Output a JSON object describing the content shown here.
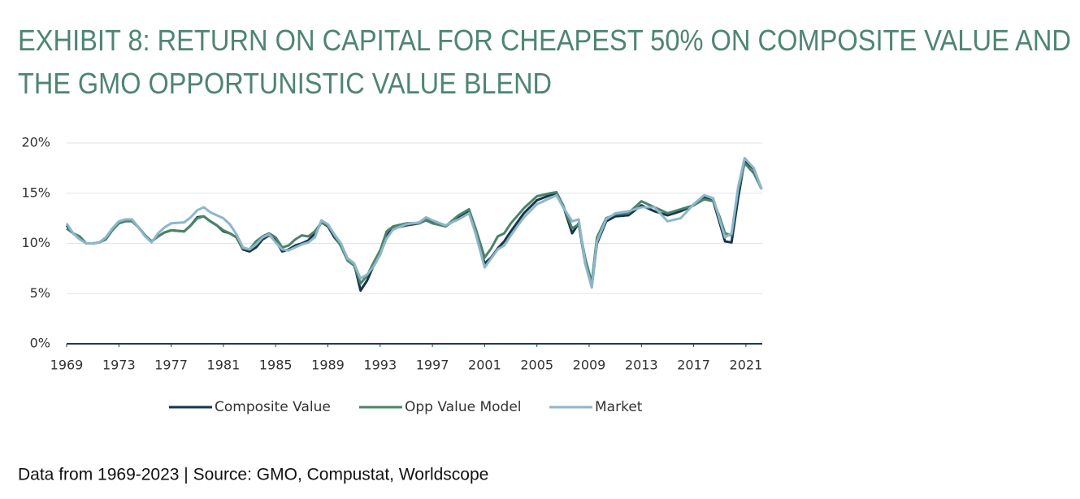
{
  "chart_data": {
    "type": "line",
    "title_lines": [
      "EXHIBIT 8: RETURN ON CAPITAL FOR CHEAPEST 50% ON COMPOSITE VALUE AND",
      "THE GMO OPPORTUNISTIC VALUE BLEND"
    ],
    "source": "Data from 1969-2023 | Source: GMO, Compustat, Worldscope",
    "x": [
      1969,
      1969.5,
      1970,
      1970.5,
      1971,
      1971.5,
      1972,
      1972.5,
      1973,
      1973.5,
      1974,
      1974.5,
      1975,
      1975.5,
      1976,
      1976.5,
      1977,
      1978,
      1978.5,
      1979,
      1979.5,
      1980,
      1980.5,
      1981,
      1981.5,
      1982,
      1982.5,
      1983,
      1983.5,
      1984,
      1984.5,
      1985,
      1985.5,
      1986,
      1986.5,
      1987,
      1987.5,
      1988,
      1988.5,
      1989,
      1989.5,
      1990,
      1990.5,
      1991,
      1991.5,
      1992,
      1992.5,
      1993,
      1993.5,
      1994,
      1995,
      1996,
      1996.5,
      1997,
      1998,
      1999,
      1999.8,
      2000.3,
      2001,
      2001.5,
      2002,
      2002.5,
      2003,
      2004,
      2005,
      2006,
      2006.5,
      2007,
      2007.7,
      2008.2,
      2008.7,
      2009.2,
      2009.6,
      2010.3,
      2011,
      2012,
      2013,
      2014,
      2015,
      2016,
      2017,
      2017.8,
      2018.5,
      2019,
      2019.4,
      2019.9,
      2020.4,
      2020.9,
      2021.6,
      2022.2
    ],
    "series": [
      {
        "name": "Composite Value",
        "color": "#17344a",
        "values": [
          11.8,
          11.0,
          10.6,
          10.0,
          10.0,
          10.1,
          10.5,
          11.4,
          12.0,
          12.3,
          12.3,
          11.6,
          10.8,
          10.2,
          10.7,
          11.1,
          11.3,
          11.2,
          11.8,
          12.6,
          12.7,
          12.2,
          11.8,
          11.2,
          11.0,
          10.6,
          9.4,
          9.2,
          9.6,
          10.4,
          10.8,
          10.3,
          9.2,
          9.4,
          9.8,
          10.0,
          10.3,
          11.0,
          12.1,
          11.7,
          10.6,
          9.8,
          8.5,
          8.0,
          5.3,
          6.3,
          7.8,
          8.9,
          10.8,
          11.5,
          11.8,
          12.0,
          12.4,
          12.1,
          11.7,
          12.6,
          13.2,
          11.0,
          8.0,
          8.6,
          9.5,
          10.2,
          11.2,
          13.0,
          14.3,
          14.8,
          15.0,
          13.8,
          11.0,
          12.0,
          8.0,
          5.7,
          10.0,
          12.2,
          12.7,
          12.8,
          13.8,
          13.2,
          12.8,
          13.2,
          13.8,
          14.6,
          14.2,
          12.0,
          10.2,
          10.1,
          14.5,
          18.3,
          17.4,
          15.4
        ]
      },
      {
        "name": "Opp Value Model",
        "color": "#4a8468",
        "values": [
          11.5,
          11.0,
          10.7,
          10.0,
          10.0,
          10.1,
          10.4,
          11.3,
          12.0,
          12.2,
          12.2,
          11.6,
          10.8,
          10.2,
          10.7,
          11.1,
          11.3,
          11.2,
          11.8,
          12.5,
          12.7,
          12.2,
          11.8,
          11.3,
          11.0,
          10.6,
          9.5,
          9.4,
          10.2,
          10.7,
          11.0,
          10.6,
          9.6,
          9.8,
          10.4,
          10.8,
          10.7,
          11.2,
          12.1,
          11.8,
          10.8,
          9.7,
          8.3,
          7.8,
          6.0,
          6.8,
          8.1,
          9.3,
          11.2,
          11.7,
          12.0,
          12.0,
          12.3,
          12.0,
          11.7,
          12.8,
          13.4,
          11.5,
          8.6,
          9.5,
          10.7,
          11.0,
          12.0,
          13.5,
          14.7,
          15.0,
          15.1,
          13.8,
          11.5,
          11.9,
          8.5,
          6.1,
          10.6,
          12.5,
          12.9,
          13.0,
          14.2,
          13.6,
          13.0,
          13.4,
          13.8,
          14.4,
          14.2,
          12.6,
          11.0,
          10.8,
          15.3,
          18.0,
          17.0,
          15.4
        ]
      },
      {
        "name": "Market",
        "color": "#8db6cc",
        "values": [
          12.0,
          11.0,
          10.4,
          10.0,
          10.0,
          10.1,
          10.6,
          11.5,
          12.2,
          12.4,
          12.4,
          11.6,
          10.7,
          10.1,
          11.0,
          11.6,
          12.0,
          12.1,
          12.6,
          13.3,
          13.6,
          13.1,
          12.8,
          12.5,
          11.9,
          10.9,
          9.6,
          9.4,
          9.9,
          10.6,
          10.9,
          10.1,
          9.4,
          9.3,
          9.6,
          9.9,
          10.1,
          10.6,
          12.3,
          11.9,
          10.9,
          10.0,
          8.5,
          8.0,
          6.5,
          6.9,
          7.7,
          8.9,
          10.5,
          11.4,
          11.9,
          12.1,
          12.6,
          12.3,
          11.8,
          12.4,
          13.0,
          11.0,
          7.6,
          8.5,
          9.4,
          9.8,
          10.8,
          12.6,
          13.9,
          14.5,
          14.8,
          13.6,
          12.2,
          12.4,
          8.0,
          5.6,
          10.2,
          12.4,
          13.0,
          13.2,
          13.6,
          13.6,
          12.2,
          12.5,
          13.9,
          14.8,
          14.5,
          12.3,
          10.6,
          11.0,
          15.6,
          18.5,
          17.5,
          15.4
        ]
      }
    ],
    "xlim": [
      1969,
      2022.25
    ],
    "xticks": [
      1969,
      1973,
      1977,
      1981,
      1985,
      1989,
      1993,
      1997,
      2001,
      2005,
      2009,
      2013,
      2017,
      2021
    ],
    "ylim": [
      0,
      20
    ],
    "yticks": [
      {
        "value": 0,
        "label": "0%"
      },
      {
        "value": 5,
        "label": "5%"
      },
      {
        "value": 10,
        "label": "10%"
      },
      {
        "value": 15,
        "label": "15%"
      },
      {
        "value": 20,
        "label": "20%"
      }
    ],
    "grid": true,
    "legend": "bottom"
  }
}
